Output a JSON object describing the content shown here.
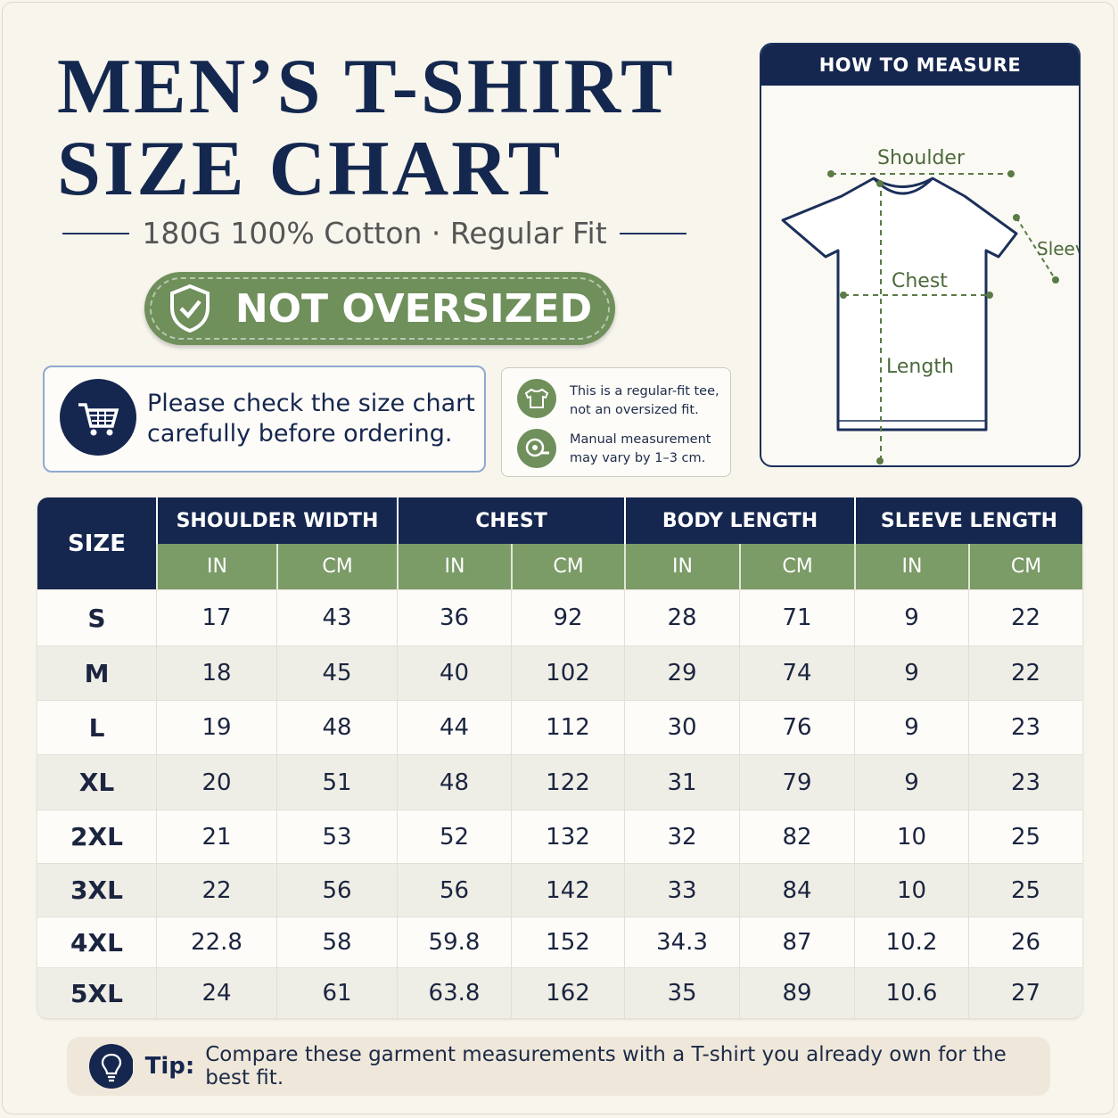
{
  "header": {
    "title_line1": "MEN’S T-SHIRT",
    "title_line2": "SIZE CHART",
    "subtitle": "180G 100% Cotton · Regular Fit",
    "badge": "NOT OVERSIZED"
  },
  "notice": {
    "line1": "Please check the size chart",
    "line2": "carefully before ordering."
  },
  "notes": [
    {
      "line1": "This is a regular-fit tee,",
      "line2": "not an oversized fit."
    },
    {
      "line1": "Manual measurement",
      "line2": "may vary by 1–3 cm."
    }
  ],
  "measure": {
    "title": "HOW TO MEASURE",
    "shoulder": "Shoulder",
    "sleeve": "Sleeve",
    "chest": "Chest",
    "length": "Length"
  },
  "table": {
    "size_header": "SIZE",
    "groups": [
      "SHOULDER WIDTH",
      "CHEST",
      "BODY LENGTH",
      "SLEEVE LENGTH"
    ],
    "units": [
      "IN",
      "CM",
      "IN",
      "CM",
      "IN",
      "CM",
      "IN",
      "CM"
    ],
    "rows": [
      [
        "S",
        17,
        43,
        36,
        92,
        28,
        71,
        9,
        22
      ],
      [
        "M",
        18,
        45,
        40,
        102,
        29,
        74,
        9,
        22
      ],
      [
        "L",
        19,
        48,
        44,
        112,
        30,
        76,
        9,
        23
      ],
      [
        "XL",
        20,
        51,
        48,
        122,
        31,
        79,
        9,
        23
      ],
      [
        "2XL",
        21,
        53,
        52,
        132,
        32,
        82,
        10,
        25
      ],
      [
        "3XL",
        22,
        56,
        56,
        142,
        33,
        84,
        10,
        25
      ],
      [
        "4XL",
        22.8,
        58,
        59.8,
        152,
        34.3,
        87,
        10.2,
        26
      ],
      [
        "5XL",
        24,
        61,
        63.8,
        162,
        35,
        89,
        10.6,
        27
      ]
    ]
  },
  "tip": {
    "label": "Tip:",
    "text": "Compare these garment measurements with a T-shirt you already own for the best fit."
  }
}
